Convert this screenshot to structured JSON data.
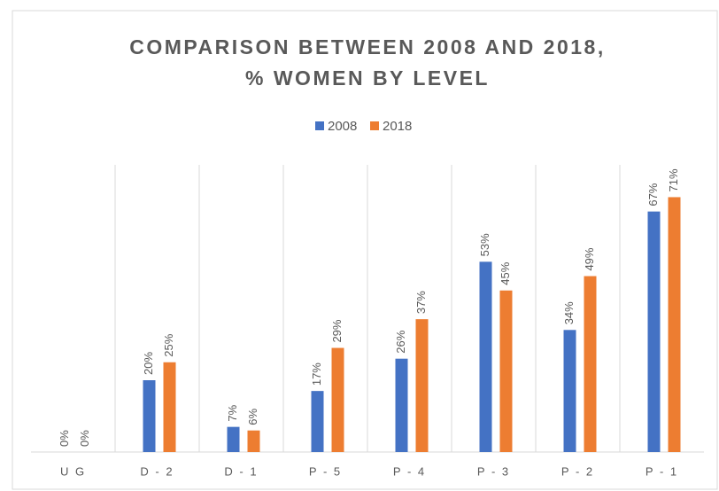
{
  "chart_data": {
    "type": "bar",
    "title": [
      "COMPARISON BETWEEN 2008 AND 2018,",
      "% WOMEN BY LEVEL"
    ],
    "categories": [
      "U G",
      "D - 2",
      "D - 1",
      "P - 5",
      "P - 4",
      "P - 3",
      "P - 2",
      "P - 1"
    ],
    "series": [
      {
        "name": "2008",
        "color": "#4472c4",
        "values": [
          0,
          20,
          7,
          17,
          26,
          53,
          34,
          67
        ],
        "value_labels": [
          "0%",
          "20%",
          "7%",
          "17%",
          "26%",
          "53%",
          "34%",
          "67%"
        ]
      },
      {
        "name": "2018",
        "color": "#ed7d31",
        "values": [
          0,
          25,
          6,
          29,
          37,
          45,
          49,
          71
        ],
        "value_labels": [
          "0%",
          "25%",
          "6%",
          "29%",
          "37%",
          "45%",
          "49%",
          "71%"
        ]
      }
    ],
    "ylim": [
      0,
      80
    ],
    "legend": "top"
  }
}
